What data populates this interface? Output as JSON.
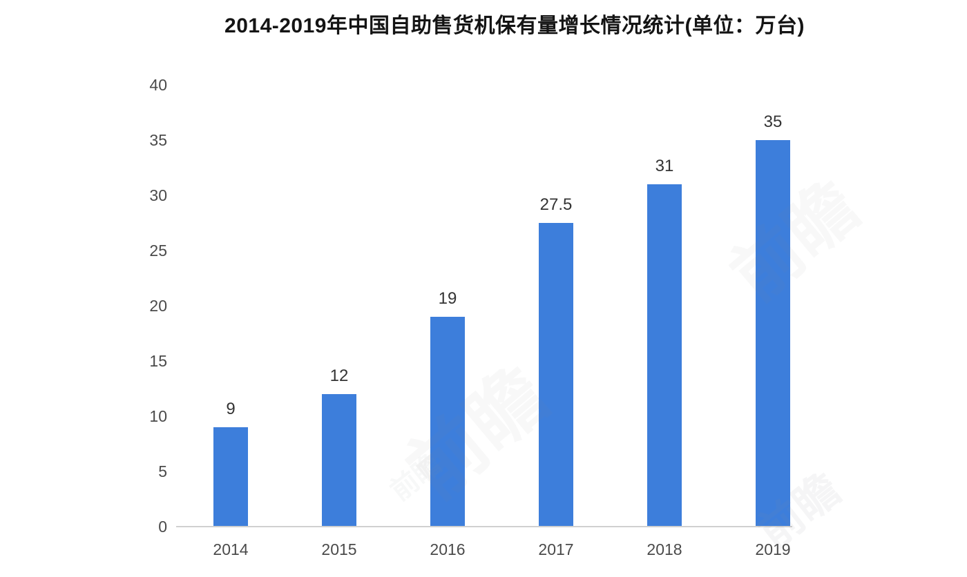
{
  "chart_data": {
    "type": "bar",
    "title": "2014-2019年中国自助售货机保有量增长情况统计(单位：万台)",
    "categories": [
      "2014",
      "2015",
      "2016",
      "2017",
      "2018",
      "2019"
    ],
    "values": [
      9,
      12,
      19,
      27.5,
      31,
      35
    ],
    "value_labels": [
      "9",
      "12",
      "19",
      "27.5",
      "31",
      "35"
    ],
    "xlabel": "",
    "ylabel": "",
    "unit": "万台",
    "ylim": [
      0,
      40
    ],
    "yticks": [
      0,
      5,
      10,
      15,
      20,
      25,
      30,
      35,
      40
    ],
    "grid": false,
    "legend": "none",
    "colors": {
      "bar": "#3d7edb",
      "axis_line": "#d0d0d0",
      "tick_text": "#4a4a4a",
      "value_text": "#333333",
      "title_text": "#141414",
      "background": "#ffffff"
    }
  },
  "watermark": {
    "text": "前瞻"
  }
}
